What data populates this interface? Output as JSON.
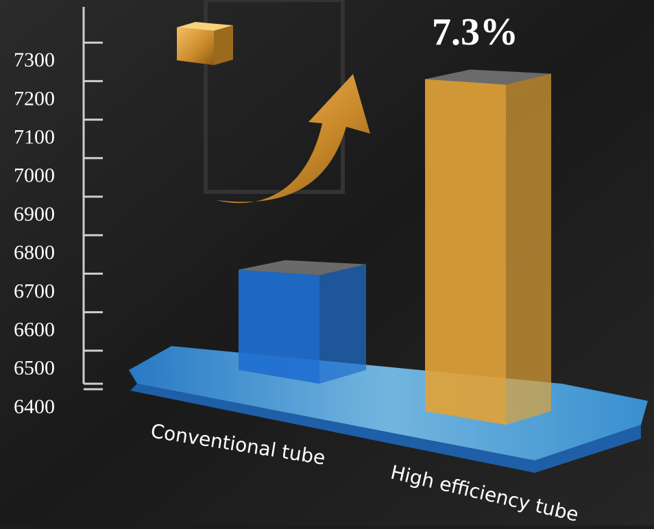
{
  "chart_data": {
    "type": "bar3d",
    "categories": [
      "Conventional tube",
      "High efficiency tube"
    ],
    "values": [
      6760,
      7255
    ],
    "colors": [
      "#1f6fd0",
      "#e0a238"
    ],
    "annotation": "7.3%",
    "ylim": [
      6400,
      7400
    ],
    "yticks": [
      6400,
      6500,
      6600,
      6700,
      6800,
      6900,
      7000,
      7100,
      7200,
      7300
    ]
  }
}
